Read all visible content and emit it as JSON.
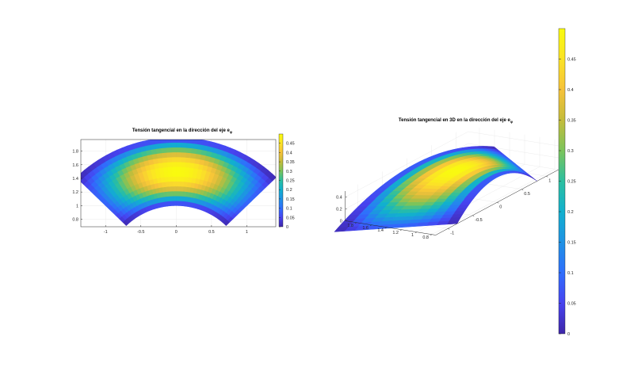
{
  "chart_data": [
    {
      "type": "heatmap",
      "plot_kind": "2D colored annular sector (surface viewed from top)",
      "title": "Tensión tangencial en la dirección del eje e",
      "title_subscript": "φ",
      "x_ticks": [
        "-1",
        "-0.5",
        "0",
        "0.5",
        "1"
      ],
      "x_tick_values": [
        -1,
        -0.5,
        0,
        0.5,
        1
      ],
      "y_ticks": [
        "0.8",
        "1",
        "1.2",
        "1.4",
        "1.6",
        "1.8"
      ],
      "y_tick_values": [
        0.8,
        1,
        1.2,
        1.4,
        1.6,
        1.8
      ],
      "xlim": [
        -1.35,
        1.41
      ],
      "ylim": [
        0.69,
        1.97
      ],
      "inner_radius": 1.0,
      "outer_radius": 2.0,
      "angle_range_deg": [
        45,
        135
      ],
      "color_range": [
        0,
        0.5
      ],
      "max_value": 0.5,
      "colorbar_ticks": [
        "0",
        "0.05",
        "0.1",
        "0.15",
        "0.2",
        "0.25",
        "0.3",
        "0.35",
        "0.4",
        "0.45"
      ],
      "colorbar_tick_values": [
        0,
        0.05,
        0.1,
        0.15,
        0.2,
        0.25,
        0.3,
        0.35,
        0.4,
        0.45
      ],
      "colormap": "parula",
      "grid": true
    },
    {
      "type": "heatmap",
      "plot_kind": "3D surface",
      "title": "Tensión tangencial en 3D en la dirección del eje e",
      "title_subscript": "φ",
      "x_ticks": [
        "-1",
        "-0.5",
        "0",
        "0.5",
        "1"
      ],
      "x_tick_values": [
        -1,
        -0.5,
        0,
        0.5,
        1
      ],
      "y_ticks": [
        "0.8",
        "1",
        "1.2",
        "1.4",
        "1.6",
        "1.8"
      ],
      "y_tick_values": [
        0.8,
        1,
        1.2,
        1.4,
        1.6,
        1.8
      ],
      "z_ticks": [
        "0",
        "0.2",
        "0.4"
      ],
      "z_tick_values": [
        0,
        0.2,
        0.4
      ],
      "max_value": 0.5,
      "colorbar_ticks": [
        "0",
        "0.05",
        "0.1",
        "0.15",
        "0.2",
        "0.25",
        "0.3",
        "0.35",
        "0.4",
        "0.45"
      ],
      "colorbar_tick_values": [
        0,
        0.05,
        0.1,
        0.15,
        0.2,
        0.25,
        0.3,
        0.35,
        0.4,
        0.45
      ],
      "colormap": "parula",
      "grid": true
    }
  ],
  "colormap_stops": [
    "#3e26a8",
    "#4743f0",
    "#2f6efd",
    "#1f92e4",
    "#11b0ce",
    "#2cbfa0",
    "#7bc45b",
    "#c4bc3b",
    "#f6c23a",
    "#fbe326",
    "#f9fb0e"
  ]
}
